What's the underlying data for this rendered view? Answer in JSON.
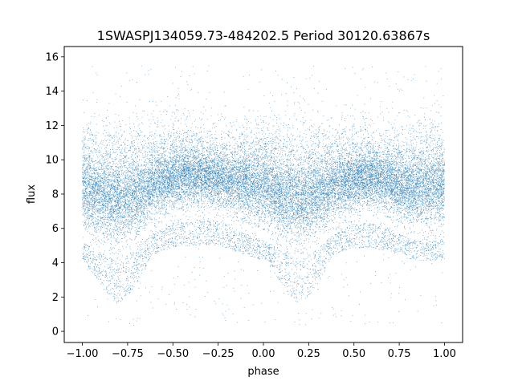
{
  "chart_data": {
    "type": "scatter",
    "title": "1SWASPJ134059.73-484202.5 Period 30120.63867s",
    "xlabel": "phase",
    "ylabel": "flux",
    "xlim": [
      -1.1,
      1.1
    ],
    "ylim": [
      -0.65,
      16.6
    ],
    "xticks": [
      -1.0,
      -0.75,
      -0.5,
      -0.25,
      0.0,
      0.25,
      0.5,
      0.75,
      1.0
    ],
    "xtick_labels": [
      "−1.00",
      "−0.75",
      "−0.50",
      "−0.25",
      "0.00",
      "0.25",
      "0.50",
      "0.75",
      "1.00"
    ],
    "yticks": [
      0,
      2,
      4,
      6,
      8,
      10,
      12,
      14,
      16
    ],
    "ytick_labels": [
      "0",
      "2",
      "4",
      "6",
      "8",
      "10",
      "12",
      "14",
      "16"
    ],
    "grid": false,
    "point_color": "#1f77b4",
    "series": [
      {
        "phase_range": [
          -1.0,
          1.0
        ],
        "flux_band_center": 8.0,
        "flux_band_halfwidth": 1.7,
        "eclipse_phases": [
          -0.8,
          0.2
        ],
        "eclipse_min_flux": 1.5,
        "flux_max": 15.5,
        "flux_min": 0.0,
        "profile": {
          "phase": [
            -1.0,
            -0.9,
            -0.8,
            -0.7,
            -0.6,
            -0.5,
            -0.4,
            -0.3,
            -0.2,
            -0.1,
            0.0,
            0.1,
            0.2,
            0.3,
            0.4,
            0.5,
            0.6,
            0.7,
            0.8,
            0.9,
            1.0
          ],
          "flux_upper": [
            10.5,
            10.2,
            10.0,
            10.2,
            10.4,
            10.5,
            10.6,
            10.4,
            10.3,
            10.4,
            10.5,
            10.2,
            10.0,
            10.2,
            10.3,
            10.4,
            10.4,
            10.3,
            10.3,
            10.4,
            10.6
          ],
          "flux_lower": [
            5.2,
            4.6,
            4.2,
            4.8,
            5.8,
            6.3,
            6.5,
            6.5,
            6.3,
            5.7,
            5.3,
            4.8,
            4.2,
            4.8,
            5.8,
            6.3,
            6.3,
            6.0,
            5.4,
            5.2,
            5.4
          ]
        }
      }
    ]
  }
}
